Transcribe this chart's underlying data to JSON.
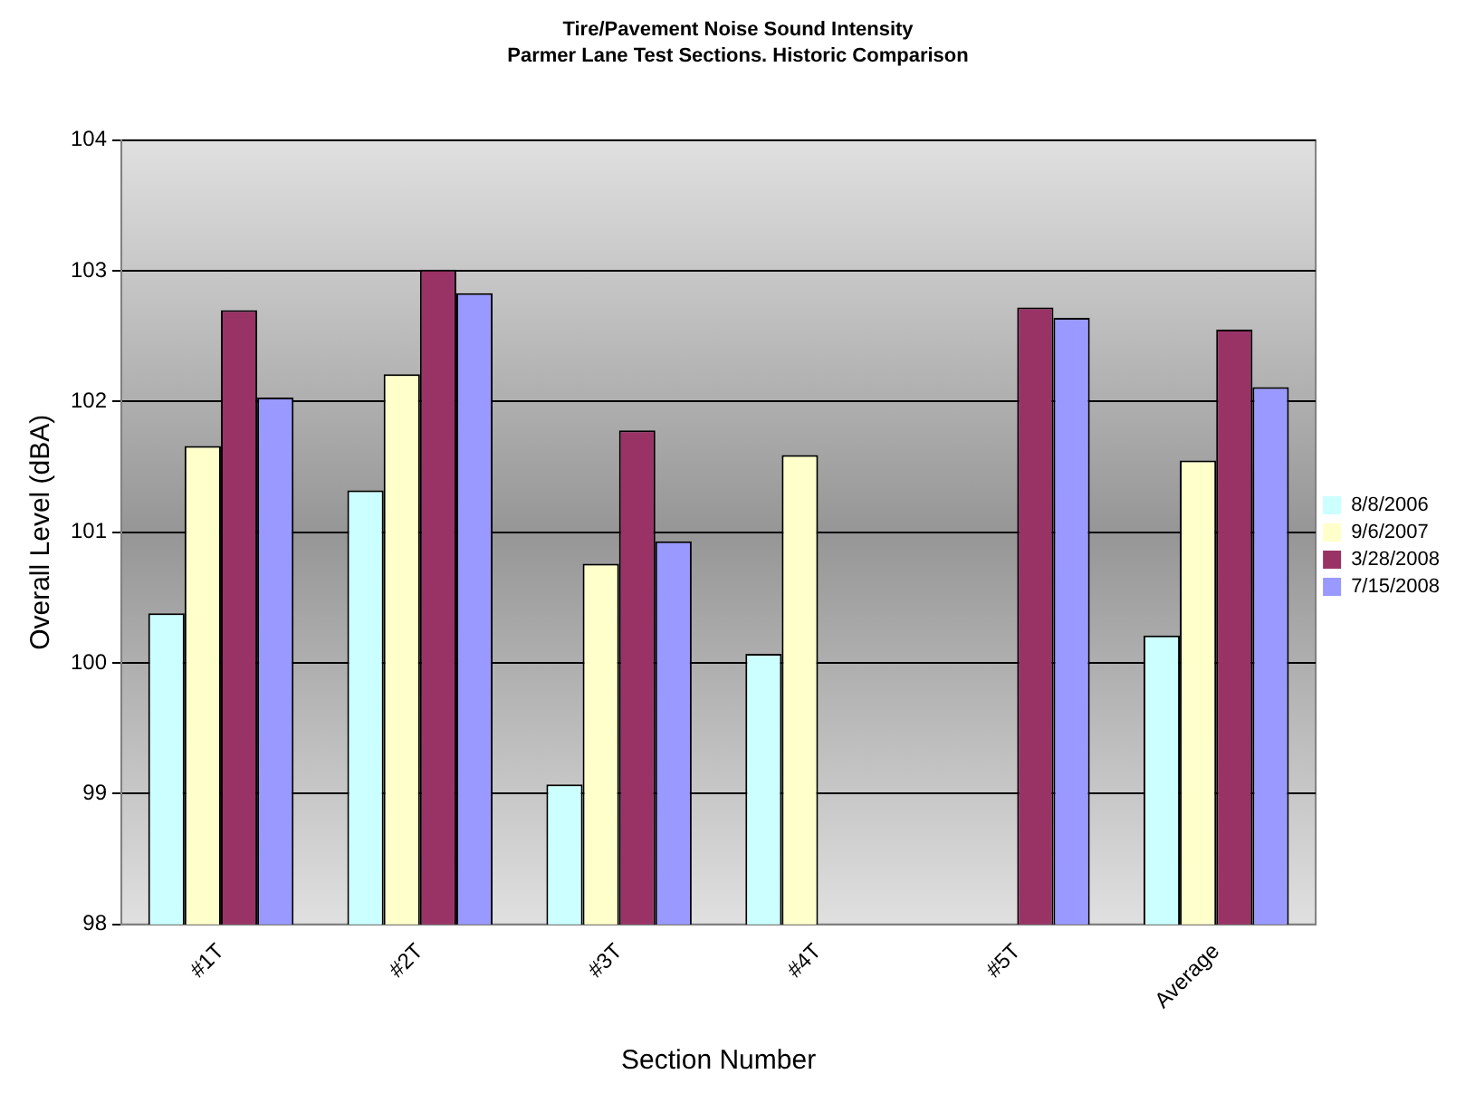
{
  "chart_data": {
    "type": "bar",
    "title": "Tire/Pavement Noise Sound Intensity",
    "subtitle": "Parmer Lane Test Sections. Historic Comparison",
    "xlabel": "Section Number",
    "ylabel": "Overall Level (dBA)",
    "categories": [
      "#1T",
      "#2T",
      "#3T",
      "#4T",
      "#5T",
      "Average"
    ],
    "series": [
      {
        "name": "8/8/2006",
        "color": "#ccffff",
        "values": [
          100.38,
          101.32,
          99.07,
          100.07,
          null,
          100.21
        ]
      },
      {
        "name": "9/6/2007",
        "color": "#ffffcc",
        "values": [
          101.66,
          102.21,
          100.76,
          101.59,
          null,
          101.55
        ]
      },
      {
        "name": "3/28/2008",
        "color": "#993366",
        "values": [
          102.7,
          103.01,
          101.78,
          null,
          102.72,
          102.55
        ]
      },
      {
        "name": "7/15/2008",
        "color": "#9999ff",
        "values": [
          102.03,
          102.83,
          100.93,
          null,
          102.64,
          102.11
        ]
      }
    ],
    "ylim": [
      98,
      104
    ],
    "yticks": [
      98,
      99,
      100,
      101,
      102,
      103,
      104
    ],
    "grid": "y",
    "legend": "right"
  }
}
